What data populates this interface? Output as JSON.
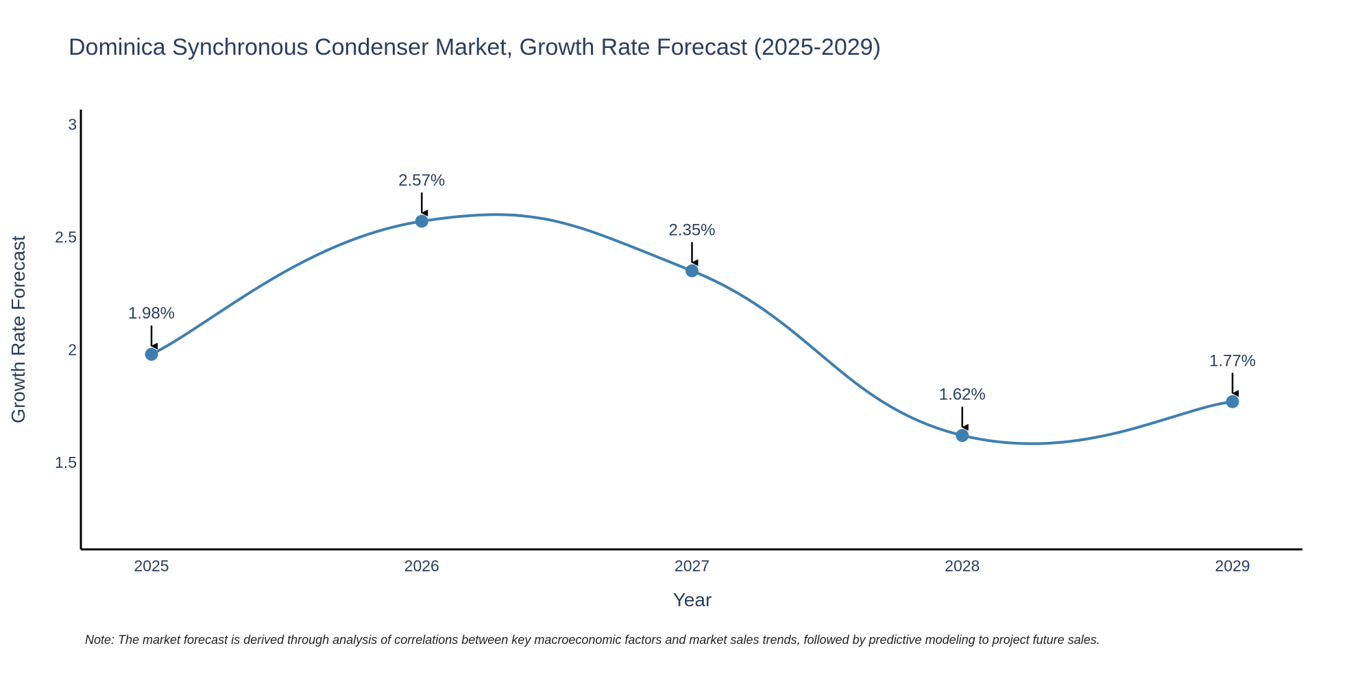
{
  "chart_data": {
    "type": "line",
    "title": "Dominica Synchronous Condenser Market, Growth Rate Forecast (2025-2029)",
    "xlabel": "Year",
    "ylabel": "Growth Rate Forecast",
    "categories": [
      "2025",
      "2026",
      "2027",
      "2028",
      "2029"
    ],
    "values": [
      1.98,
      2.57,
      2.35,
      1.62,
      1.77
    ],
    "data_labels": [
      "1.98%",
      "2.57%",
      "2.35%",
      "1.62%",
      "1.77%"
    ],
    "yticks": [
      1.5,
      2,
      2.5,
      3
    ],
    "ytick_labels": [
      "1.5",
      "2",
      "2.5",
      "3"
    ],
    "ylim": [
      1.115,
      3.065
    ],
    "line_color": "#3f7fb0",
    "marker_color": "#3f7fb0",
    "grid": false
  },
  "note": "Note: The market forecast is derived through analysis of correlations between key macroeconomic factors and market sales trends, followed by predictive modeling to project future sales."
}
